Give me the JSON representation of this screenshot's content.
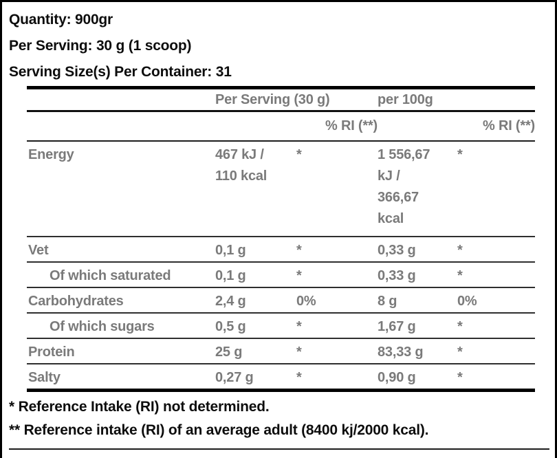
{
  "product_info": {
    "quantity": "Quantity: 900gr",
    "per_serving": "Per Serving: 30 g (1 scoop)",
    "servings_per_container": "Serving Size(s) Per Container: 31"
  },
  "table": {
    "headers": {
      "per_serving": "Per Serving (30 g)",
      "per_100g": "per 100g",
      "ri": "% RI (**)"
    },
    "rows": [
      {
        "name": "Energy",
        "serving_value": "467 kJ /\n110 kcal",
        "serving_ri": "*",
        "per100_value": "1 556,67\nkJ /\n366,67\nkcal",
        "per100_ri": "*"
      },
      {
        "name": "Vet",
        "serving_value": "0,1 g",
        "serving_ri": "*",
        "per100_value": "0,33 g",
        "per100_ri": "*"
      },
      {
        "name": "Of which saturated",
        "serving_value": "0,1 g",
        "serving_ri": "*",
        "per100_value": "0,33 g",
        "per100_ri": "*"
      },
      {
        "name": "Carbohydrates",
        "serving_value": "2,4 g",
        "serving_ri": "0%",
        "per100_value": "8 g",
        "per100_ri": "0%"
      },
      {
        "name": "Of which sugars",
        "serving_value": "0,5 g",
        "serving_ri": "*",
        "per100_value": "1,67 g",
        "per100_ri": "*"
      },
      {
        "name": "Protein",
        "serving_value": "25 g",
        "serving_ri": "*",
        "per100_value": "83,33 g",
        "per100_ri": "*"
      },
      {
        "name": "Salty",
        "serving_value": "0,27 g",
        "serving_ri": "*",
        "per100_value": "0,90 g",
        "per100_ri": "*"
      }
    ]
  },
  "footnotes": {
    "single": "* Reference Intake (RI) not determined.",
    "double": "** Reference intake (RI) of an average adult (8400 kj/2000 kcal)."
  },
  "colors": {
    "text_black": "#0d0d0d",
    "text_gray": "#7a7a7a",
    "rule_black": "#000000"
  }
}
